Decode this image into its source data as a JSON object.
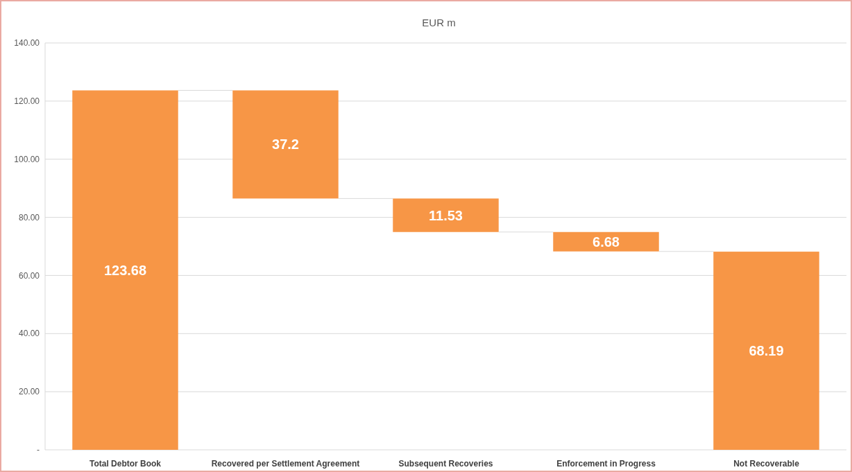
{
  "chart_data": {
    "type": "bar",
    "title": "EUR m",
    "categories": [
      "Total Debtor Book",
      "Recovered per Settlement Agreement",
      "Subsequent Recoveries",
      "Enforcement in Progress",
      "Not Recoverable"
    ],
    "values": [
      123.68,
      37.2,
      11.53,
      6.68,
      68.19
    ],
    "base": [
      0,
      86.48,
      74.95,
      68.27,
      0
    ],
    "color": "#f79646",
    "ylim": [
      0,
      140
    ],
    "yticks": [
      {
        "value": 0,
        "label": "-"
      },
      {
        "value": 20,
        "label": "20.00"
      },
      {
        "value": 40,
        "label": "40.00"
      },
      {
        "value": 60,
        "label": "60.00"
      },
      {
        "value": 80,
        "label": "80.00"
      },
      {
        "value": 100,
        "label": "100.00"
      },
      {
        "value": 120,
        "label": "120.00"
      },
      {
        "value": 140,
        "label": "140.00"
      }
    ],
    "grid": true,
    "data_labels": true
  }
}
